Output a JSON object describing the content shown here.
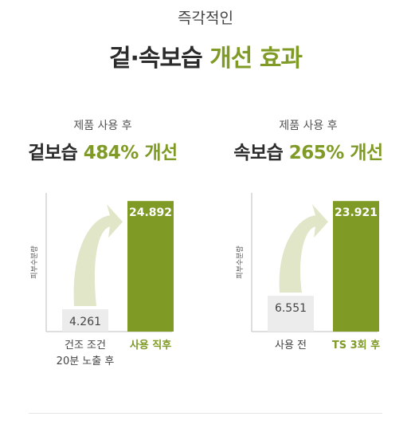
{
  "kicker": "즉각적인",
  "headline": {
    "dark": "겉·속보습",
    "green": "개선 효과"
  },
  "colors": {
    "accent": "#7f9a25",
    "before_bar": "#ececec",
    "arrow": "#e2e6c8"
  },
  "chart_data": [
    {
      "type": "bar",
      "subtitle": "제품 사용 후",
      "stat_dark": "겉보습",
      "stat_green": "484% 개선",
      "ylabel": "피부수분량",
      "categories": [
        "건조 조건\n20분 노출 후",
        "사용 직후"
      ],
      "values": [
        4.261,
        24.892
      ],
      "value_labels": [
        "4.261",
        "24.892"
      ],
      "highlight_index": 1
    },
    {
      "type": "bar",
      "subtitle": "제품 사용 후",
      "stat_dark": "속보습",
      "stat_green": "265% 개선",
      "ylabel": "피부수분량",
      "categories": [
        "사용 전",
        "TS 3회 후"
      ],
      "values": [
        6.551,
        23.921
      ],
      "value_labels": [
        "6.551",
        "23.921"
      ],
      "highlight_index": 1
    }
  ]
}
